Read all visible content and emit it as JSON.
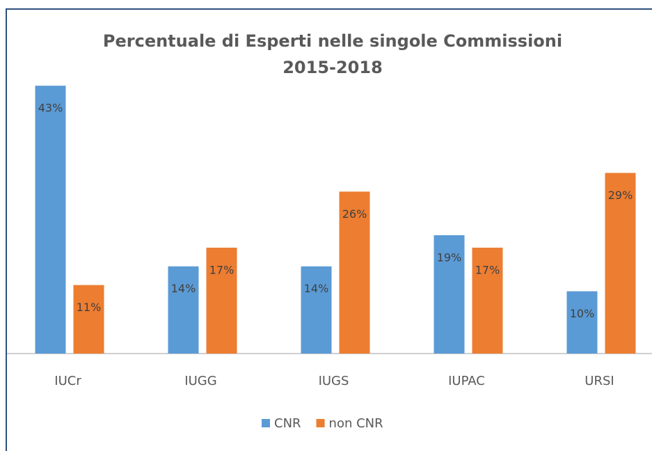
{
  "chart_data": {
    "type": "bar",
    "title": "Percentuale di Esperti nelle singole Commissioni",
    "subtitle": "2015-2018",
    "categories": [
      "IUCr",
      "IUGG",
      "IUGS",
      "IUPAC",
      "URSI"
    ],
    "series": [
      {
        "name": "CNR",
        "color": "#5b9bd5",
        "values": [
          43,
          14,
          14,
          19,
          10
        ],
        "value_labels": [
          "43%",
          "14%",
          "14%",
          "19%",
          "10%"
        ]
      },
      {
        "name": "non CNR",
        "color": "#ed7d31",
        "values": [
          11,
          17,
          26,
          17,
          29
        ],
        "value_labels": [
          "11%",
          "17%",
          "26%",
          "17%",
          "29%"
        ]
      }
    ],
    "legend": "bottom"
  }
}
